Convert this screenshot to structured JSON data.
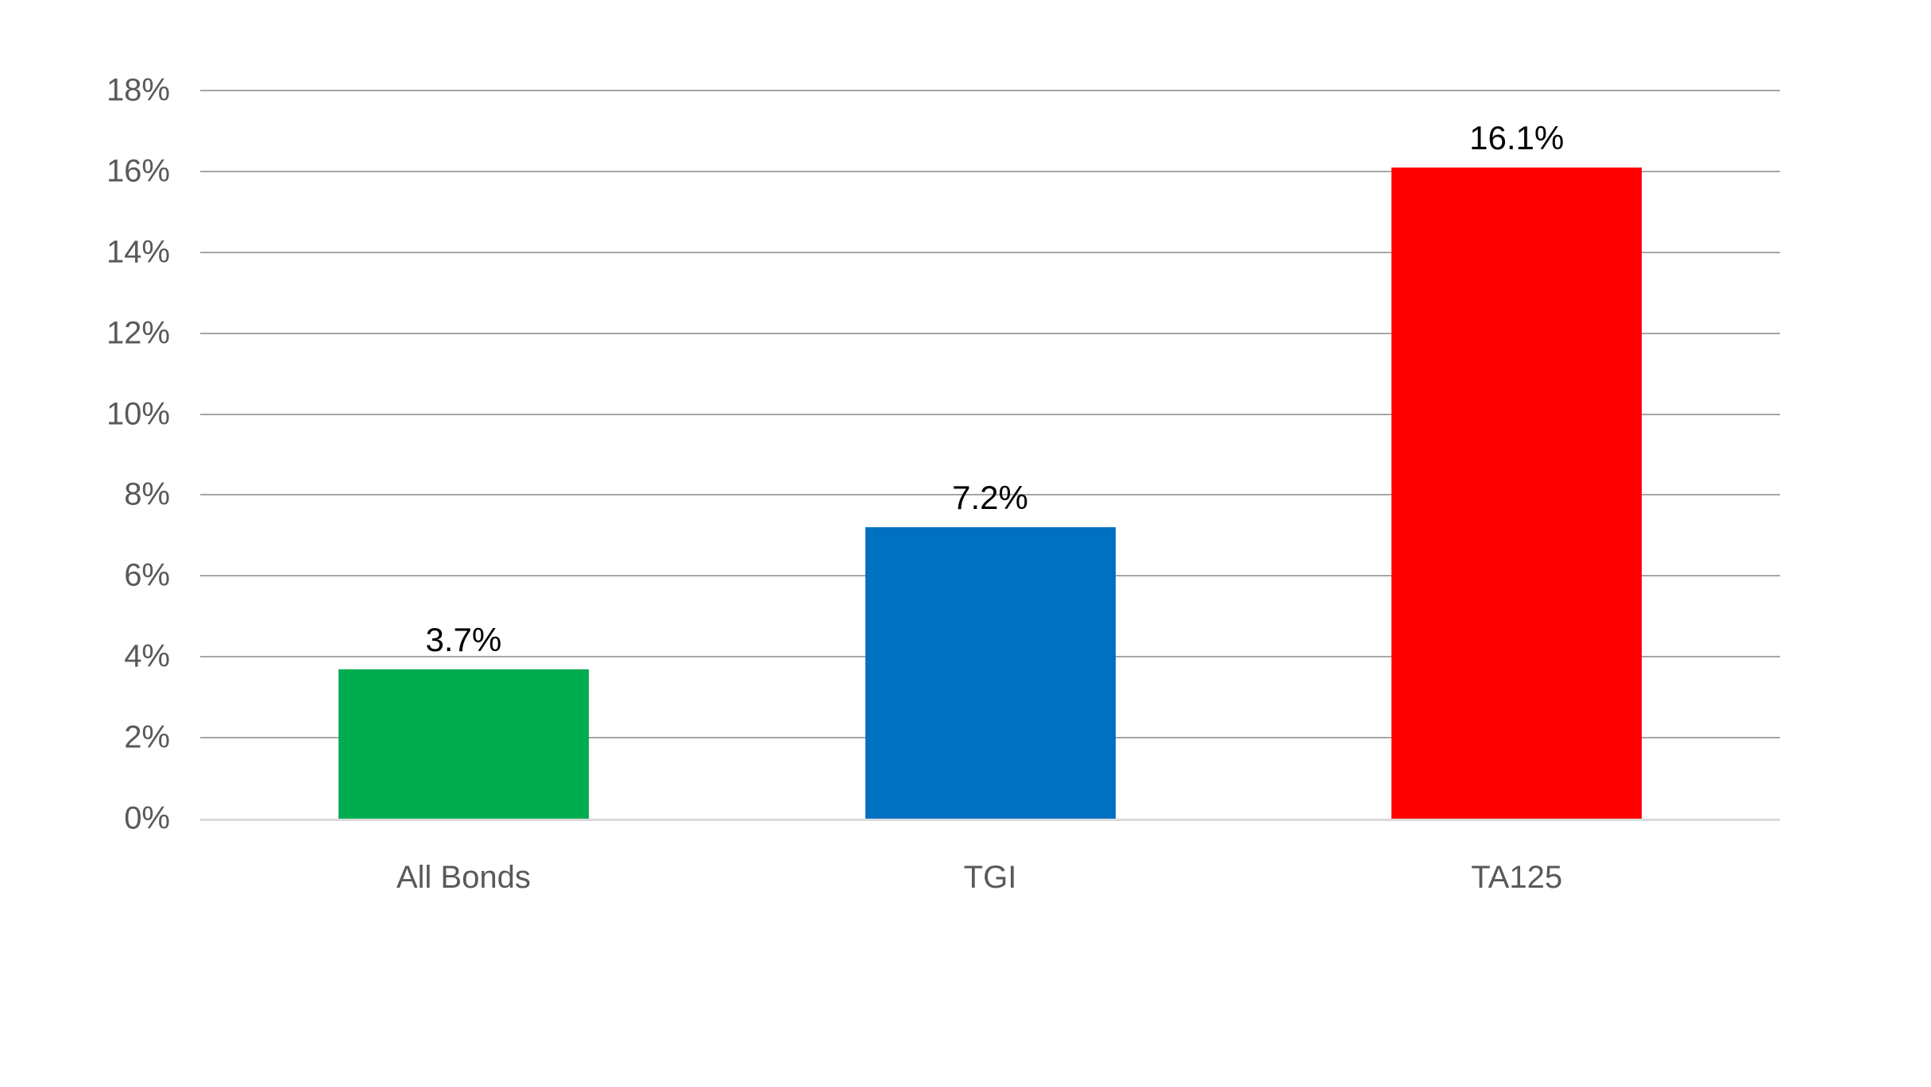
{
  "chart_data": {
    "type": "bar",
    "title": "",
    "xlabel": "",
    "ylabel": "",
    "categories": [
      "All Bonds",
      "TGI",
      "TA125"
    ],
    "values": [
      3.7,
      7.2,
      16.1
    ],
    "value_labels": [
      "3.7%",
      "7.2%",
      "16.1%"
    ],
    "bar_colors": [
      "#00AC50",
      "#0070C0",
      "#FF0000"
    ],
    "ylim": [
      0,
      18
    ],
    "y_tick_step": 2,
    "y_tick_labels": [
      "0%",
      "2%",
      "4%",
      "6%",
      "8%",
      "10%",
      "12%",
      "14%",
      "16%",
      "18%"
    ],
    "grid": true,
    "legend_position": "none",
    "gridline_color": "#A6A6A6",
    "axis_line_color": "#D9D9D9",
    "tick_label_color": "#595959",
    "data_label_color": "#000000",
    "background_color": "#FFFFFF"
  }
}
